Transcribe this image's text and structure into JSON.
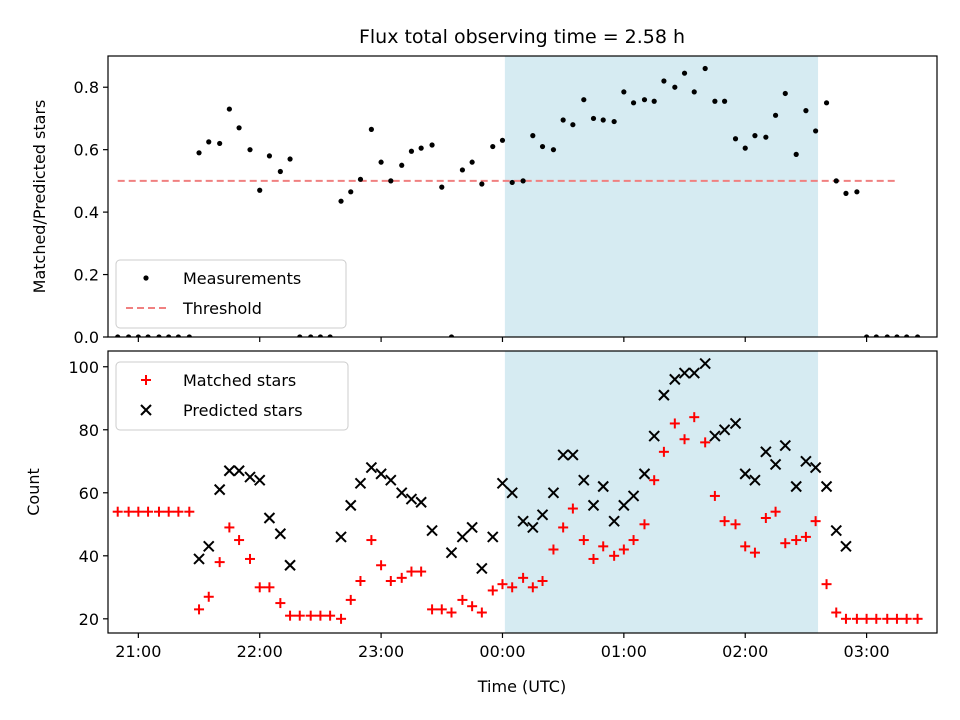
{
  "chart_data": [
    {
      "type": "scatter",
      "title": "Flux total observing time = 2.58 h",
      "xlabel": "",
      "ylabel": "Matched/Predicted stars",
      "xlim": [
        -3.25,
        3.58
      ],
      "ylim": [
        0,
        0.9
      ],
      "yticks": [
        0.0,
        0.2,
        0.4,
        0.6,
        0.8
      ],
      "ytick_labels": [
        "0.0",
        "0.2",
        "0.4",
        "0.6",
        "0.8"
      ],
      "xticks": [
        -3,
        -2,
        -1,
        0,
        1,
        2,
        3
      ],
      "shaded_span": [
        0.02,
        2.6
      ],
      "threshold": {
        "label": "Threshold",
        "value": 0.5,
        "x": [
          -3.17,
          3.25
        ],
        "color": "#f08080"
      },
      "legend": [
        "Measurements",
        "Threshold"
      ],
      "legend_position": "lower-left",
      "series": [
        {
          "name": "Measurements",
          "color": "#000000",
          "points": [
            [
              -3.17,
              0
            ],
            [
              -3.08,
              0
            ],
            [
              -3.0,
              0
            ],
            [
              -2.92,
              0
            ],
            [
              -2.83,
              0
            ],
            [
              -2.75,
              0
            ],
            [
              -2.67,
              0
            ],
            [
              -2.58,
              0
            ],
            [
              -2.5,
              0.59
            ],
            [
              -2.42,
              0.625
            ],
            [
              -2.33,
              0.62
            ],
            [
              -2.25,
              0.73
            ],
            [
              -2.17,
              0.67
            ],
            [
              -2.08,
              0.6
            ],
            [
              -2.0,
              0.47
            ],
            [
              -1.92,
              0.58
            ],
            [
              -1.83,
              0.53
            ],
            [
              -1.75,
              0.57
            ],
            [
              -1.67,
              0
            ],
            [
              -1.58,
              0
            ],
            [
              -1.5,
              0
            ],
            [
              -1.42,
              0
            ],
            [
              -1.33,
              0.435
            ],
            [
              -1.25,
              0.465
            ],
            [
              -1.17,
              0.505
            ],
            [
              -1.08,
              0.665
            ],
            [
              -1.0,
              0.56
            ],
            [
              -0.92,
              0.5
            ],
            [
              -0.83,
              0.55
            ],
            [
              -0.75,
              0.595
            ],
            [
              -0.67,
              0.605
            ],
            [
              -0.58,
              0.615
            ],
            [
              -0.5,
              0.48
            ],
            [
              -0.42,
              0
            ],
            [
              -0.33,
              0.535
            ],
            [
              -0.25,
              0.56
            ],
            [
              -0.17,
              0.49
            ],
            [
              -0.08,
              0.61
            ],
            [
              0.0,
              0.63
            ],
            [
              0.08,
              0.495
            ],
            [
              0.17,
              0.5
            ],
            [
              0.25,
              0.645
            ],
            [
              0.33,
              0.61
            ],
            [
              0.42,
              0.6
            ],
            [
              0.5,
              0.695
            ],
            [
              0.58,
              0.68
            ],
            [
              0.67,
              0.76
            ],
            [
              0.75,
              0.7
            ],
            [
              0.83,
              0.695
            ],
            [
              0.92,
              0.69
            ],
            [
              1.0,
              0.785
            ],
            [
              1.08,
              0.75
            ],
            [
              1.17,
              0.76
            ],
            [
              1.25,
              0.755
            ],
            [
              1.33,
              0.82
            ],
            [
              1.42,
              0.8
            ],
            [
              1.5,
              0.845
            ],
            [
              1.58,
              0.785
            ],
            [
              1.67,
              0.86
            ],
            [
              1.75,
              0.755
            ],
            [
              1.83,
              0.755
            ],
            [
              1.92,
              0.635
            ],
            [
              2.0,
              0.605
            ],
            [
              2.08,
              0.645
            ],
            [
              2.17,
              0.64
            ],
            [
              2.25,
              0.71
            ],
            [
              2.33,
              0.78
            ],
            [
              2.42,
              0.585
            ],
            [
              2.5,
              0.725
            ],
            [
              2.58,
              0.66
            ],
            [
              2.67,
              0.75
            ],
            [
              2.75,
              0.5
            ],
            [
              2.83,
              0.46
            ],
            [
              2.92,
              0.465
            ],
            [
              3.0,
              0
            ],
            [
              3.08,
              0
            ],
            [
              3.17,
              0
            ],
            [
              3.25,
              0
            ],
            [
              3.33,
              0
            ],
            [
              3.42,
              0
            ]
          ]
        }
      ]
    },
    {
      "type": "scatter",
      "title": "",
      "xlabel": "Time (UTC)",
      "ylabel": "Count",
      "xlim": [
        -3.25,
        3.58
      ],
      "ylim": [
        15.5,
        105
      ],
      "yticks": [
        20,
        40,
        60,
        80,
        100
      ],
      "ytick_labels": [
        "20",
        "40",
        "60",
        "80",
        "100"
      ],
      "xticks": [
        -3,
        -2,
        -1,
        0,
        1,
        2,
        3
      ],
      "xtick_labels": [
        "21:00",
        "22:00",
        "23:00",
        "00:00",
        "01:00",
        "02:00",
        "03:00"
      ],
      "shaded_span": [
        0.02,
        2.6
      ],
      "legend": [
        "Matched stars",
        "Predicted stars"
      ],
      "legend_position": "upper-left",
      "series": [
        {
          "name": "Matched stars",
          "marker": "plus",
          "color": "#ff0000",
          "points": [
            [
              -3.17,
              54
            ],
            [
              -3.08,
              54
            ],
            [
              -3.0,
              54
            ],
            [
              -2.92,
              54
            ],
            [
              -2.83,
              54
            ],
            [
              -2.75,
              54
            ],
            [
              -2.67,
              54
            ],
            [
              -2.58,
              54
            ],
            [
              -2.5,
              23
            ],
            [
              -2.42,
              27
            ],
            [
              -2.33,
              38
            ],
            [
              -2.25,
              49
            ],
            [
              -2.17,
              45
            ],
            [
              -2.08,
              39
            ],
            [
              -2.0,
              30
            ],
            [
              -1.92,
              30
            ],
            [
              -1.83,
              25
            ],
            [
              -1.75,
              21
            ],
            [
              -1.67,
              21
            ],
            [
              -1.58,
              21
            ],
            [
              -1.5,
              21
            ],
            [
              -1.42,
              21
            ],
            [
              -1.33,
              20
            ],
            [
              -1.25,
              26
            ],
            [
              -1.17,
              32
            ],
            [
              -1.08,
              45
            ],
            [
              -1.0,
              37
            ],
            [
              -0.92,
              32
            ],
            [
              -0.83,
              33
            ],
            [
              -0.75,
              35
            ],
            [
              -0.67,
              35
            ],
            [
              -0.58,
              23
            ],
            [
              -0.5,
              23
            ],
            [
              -0.42,
              22
            ],
            [
              -0.33,
              26
            ],
            [
              -0.25,
              24
            ],
            [
              -0.17,
              22
            ],
            [
              -0.08,
              29
            ],
            [
              0.0,
              31
            ],
            [
              0.08,
              30
            ],
            [
              0.17,
              33
            ],
            [
              0.25,
              30
            ],
            [
              0.33,
              32
            ],
            [
              0.42,
              42
            ],
            [
              0.5,
              49
            ],
            [
              0.58,
              55
            ],
            [
              0.67,
              45
            ],
            [
              0.75,
              39
            ],
            [
              0.83,
              43
            ],
            [
              0.92,
              40
            ],
            [
              1.0,
              42
            ],
            [
              1.08,
              45
            ],
            [
              1.17,
              50
            ],
            [
              1.25,
              64
            ],
            [
              1.33,
              73
            ],
            [
              1.42,
              82
            ],
            [
              1.5,
              77
            ],
            [
              1.58,
              84
            ],
            [
              1.67,
              76
            ],
            [
              1.75,
              59
            ],
            [
              1.83,
              51
            ],
            [
              1.92,
              50
            ],
            [
              2.0,
              43
            ],
            [
              2.08,
              41
            ],
            [
              2.17,
              52
            ],
            [
              2.25,
              54
            ],
            [
              2.33,
              44
            ],
            [
              2.42,
              45
            ],
            [
              2.5,
              46
            ],
            [
              2.58,
              51
            ],
            [
              2.67,
              31
            ],
            [
              2.75,
              22
            ],
            [
              2.83,
              20
            ],
            [
              2.92,
              20
            ],
            [
              3.0,
              20
            ],
            [
              3.08,
              20
            ],
            [
              3.17,
              20
            ],
            [
              3.25,
              20
            ],
            [
              3.33,
              20
            ],
            [
              3.42,
              20
            ]
          ]
        },
        {
          "name": "Predicted stars",
          "marker": "x",
          "color": "#000000",
          "points": [
            [
              -2.5,
              39
            ],
            [
              -2.42,
              43
            ],
            [
              -2.33,
              61
            ],
            [
              -2.25,
              67
            ],
            [
              -2.17,
              67
            ],
            [
              -2.08,
              65
            ],
            [
              -2.0,
              64
            ],
            [
              -1.92,
              52
            ],
            [
              -1.83,
              47
            ],
            [
              -1.75,
              37
            ],
            [
              -1.33,
              46
            ],
            [
              -1.25,
              56
            ],
            [
              -1.17,
              63
            ],
            [
              -1.08,
              68
            ],
            [
              -1.0,
              66
            ],
            [
              -0.92,
              64
            ],
            [
              -0.83,
              60
            ],
            [
              -0.75,
              58
            ],
            [
              -0.67,
              57
            ],
            [
              -0.58,
              48
            ],
            [
              -0.42,
              41
            ],
            [
              -0.33,
              46
            ],
            [
              -0.25,
              49
            ],
            [
              -0.17,
              36
            ],
            [
              -0.08,
              46
            ],
            [
              0.0,
              63
            ],
            [
              0.08,
              60
            ],
            [
              0.17,
              51
            ],
            [
              0.25,
              49
            ],
            [
              0.33,
              53
            ],
            [
              0.42,
              60
            ],
            [
              0.5,
              72
            ],
            [
              0.58,
              72
            ],
            [
              0.67,
              64
            ],
            [
              0.75,
              56
            ],
            [
              0.83,
              62
            ],
            [
              0.92,
              51
            ],
            [
              1.0,
              56
            ],
            [
              1.08,
              59
            ],
            [
              1.17,
              66
            ],
            [
              1.25,
              78
            ],
            [
              1.33,
              91
            ],
            [
              1.42,
              96
            ],
            [
              1.5,
              98
            ],
            [
              1.58,
              98
            ],
            [
              1.67,
              101
            ],
            [
              1.75,
              78
            ],
            [
              1.83,
              80
            ],
            [
              1.92,
              82
            ],
            [
              2.0,
              66
            ],
            [
              2.08,
              64
            ],
            [
              2.17,
              73
            ],
            [
              2.25,
              69
            ],
            [
              2.33,
              75
            ],
            [
              2.42,
              62
            ],
            [
              2.5,
              70
            ],
            [
              2.58,
              68
            ],
            [
              2.67,
              62
            ],
            [
              2.75,
              48
            ],
            [
              2.83,
              43
            ]
          ]
        }
      ]
    }
  ]
}
